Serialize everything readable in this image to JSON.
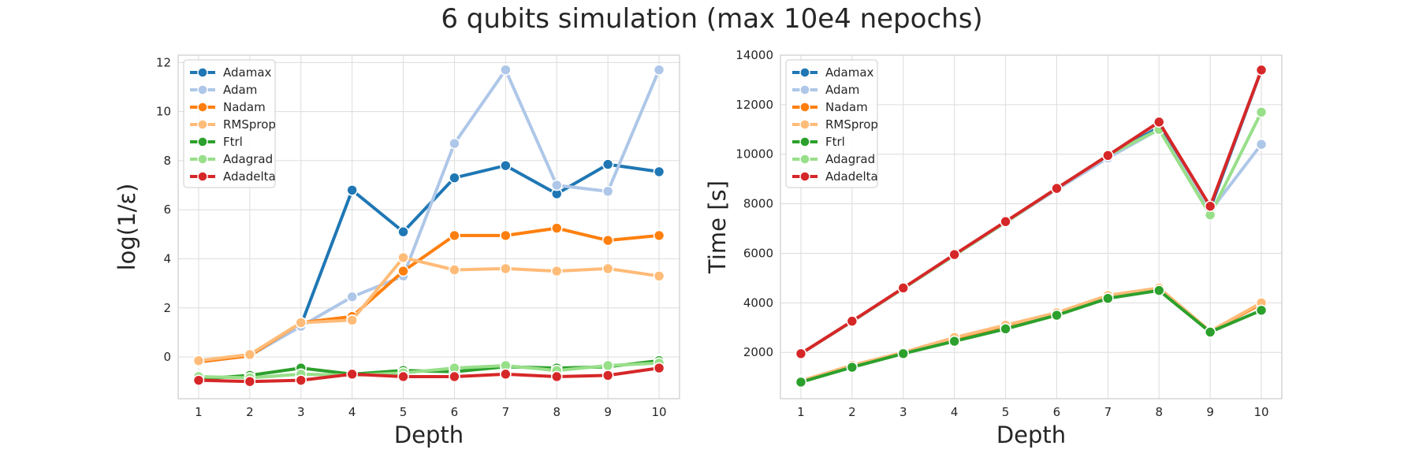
{
  "figure": {
    "title": "6 qubits simulation (max 10e4 nepochs)"
  },
  "chart_data": [
    {
      "type": "line",
      "title": "",
      "xlabel": "Depth",
      "ylabel": "log(1/ε)",
      "xlim": [
        0.6,
        10.4
      ],
      "ylim": [
        -1.7,
        12.3
      ],
      "xticks": [
        1,
        2,
        3,
        4,
        5,
        6,
        7,
        8,
        9,
        10
      ],
      "yticks": [
        0,
        2,
        4,
        6,
        8,
        10,
        12
      ],
      "grid": true,
      "legend": "upper-left",
      "x": [
        1,
        2,
        3,
        4,
        5,
        6,
        7,
        8,
        9,
        10
      ],
      "series": [
        {
          "name": "Adamax",
          "color": "#1f77b4",
          "values": [
            -0.2,
            0.05,
            1.3,
            6.8,
            5.1,
            7.3,
            7.8,
            6.65,
            7.85,
            7.55
          ]
        },
        {
          "name": "Adam",
          "color": "#aec7e8",
          "values": [
            -0.2,
            0.05,
            1.25,
            2.45,
            3.3,
            8.7,
            11.7,
            7.0,
            6.75,
            11.7
          ]
        },
        {
          "name": "Nadam",
          "color": "#ff7f0e",
          "values": [
            -0.2,
            0.05,
            1.4,
            1.65,
            3.5,
            4.95,
            4.95,
            5.25,
            4.75,
            4.95
          ]
        },
        {
          "name": "RMSprop",
          "color": "#ffbb78",
          "values": [
            -0.15,
            0.1,
            1.4,
            1.5,
            4.05,
            3.55,
            3.6,
            3.5,
            3.6,
            3.3
          ]
        },
        {
          "name": "Ftrl",
          "color": "#2ca02c",
          "values": [
            -0.9,
            -0.75,
            -0.45,
            -0.7,
            -0.55,
            -0.6,
            -0.4,
            -0.45,
            -0.4,
            -0.15
          ]
        },
        {
          "name": "Adagrad",
          "color": "#98df8a",
          "values": [
            -0.8,
            -0.85,
            -0.7,
            -0.75,
            -0.65,
            -0.45,
            -0.35,
            -0.55,
            -0.35,
            -0.25
          ]
        },
        {
          "name": "Adadelta",
          "color": "#d62728",
          "values": [
            -0.95,
            -1.0,
            -0.95,
            -0.7,
            -0.8,
            -0.8,
            -0.7,
            -0.8,
            -0.75,
            -0.45
          ]
        }
      ]
    },
    {
      "type": "line",
      "title": "",
      "xlabel": "Depth",
      "ylabel": "Time [s]",
      "xlim": [
        0.6,
        10.4
      ],
      "ylim": [
        130,
        14000
      ],
      "xticks": [
        1,
        2,
        3,
        4,
        5,
        6,
        7,
        8,
        9,
        10
      ],
      "yticks": [
        2000,
        4000,
        6000,
        8000,
        10000,
        12000,
        14000
      ],
      "grid": true,
      "legend": "upper-left",
      "x": [
        1,
        2,
        3,
        4,
        5,
        6,
        7,
        8,
        9,
        10
      ],
      "series": [
        {
          "name": "Adamax",
          "color": "#1f77b4",
          "values": [
            1950,
            3250,
            4580,
            5920,
            7250,
            8600,
            9900,
            11100,
            7800,
            13400
          ]
        },
        {
          "name": "Adam",
          "color": "#aec7e8",
          "values": [
            1950,
            3250,
            4580,
            5920,
            7250,
            8580,
            9850,
            11000,
            7700,
            10400
          ]
        },
        {
          "name": "Nadam",
          "color": "#ff7f0e",
          "values": [
            850,
            1450,
            1980,
            2550,
            3050,
            3550,
            4250,
            4600,
            2850,
            3950
          ]
        },
        {
          "name": "RMSprop",
          "color": "#ffbb78",
          "values": [
            850,
            1480,
            2000,
            2600,
            3100,
            3600,
            4300,
            4600,
            2850,
            4000
          ]
        },
        {
          "name": "Ftrl",
          "color": "#2ca02c",
          "values": [
            800,
            1400,
            1950,
            2450,
            2950,
            3500,
            4180,
            4500,
            2820,
            3700
          ]
        },
        {
          "name": "Adagrad",
          "color": "#98df8a",
          "values": [
            1950,
            3250,
            4580,
            5920,
            7250,
            8620,
            9950,
            11000,
            7550,
            11700
          ]
        },
        {
          "name": "Adadelta",
          "color": "#d62728",
          "values": [
            1950,
            3260,
            4600,
            5950,
            7280,
            8620,
            9950,
            11300,
            7900,
            13400
          ]
        }
      ]
    }
  ]
}
